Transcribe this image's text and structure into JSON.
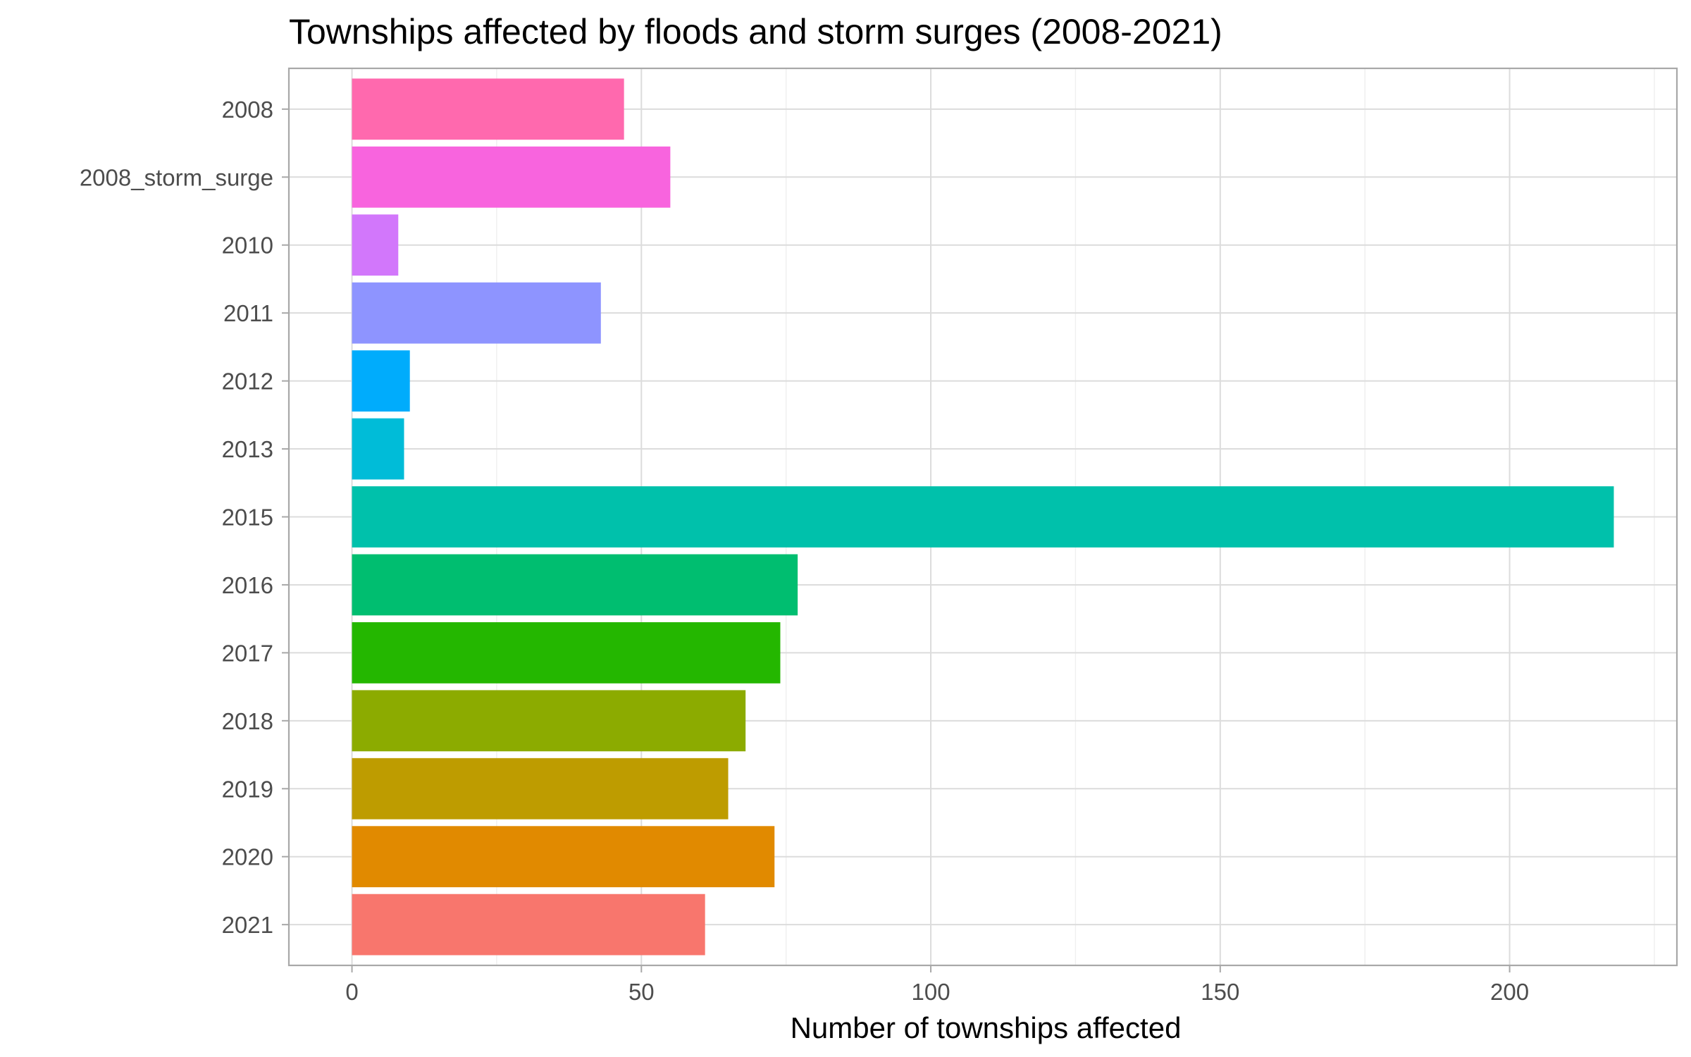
{
  "chart_data": {
    "type": "bar",
    "orientation": "horizontal",
    "title": "Townships affected by floods and storm surges (2008-2021)",
    "xlabel": "Number of townships affected",
    "ylabel": "",
    "xlim": [
      -10.9,
      228.9
    ],
    "x_ticks": [
      0,
      50,
      100,
      150,
      200
    ],
    "x_tick_labels": [
      "0",
      "50",
      "100",
      "150",
      "200"
    ],
    "x_minor_ticks": [
      25,
      75,
      125,
      175,
      225
    ],
    "grid": true,
    "legend": "none",
    "categories": [
      "2008",
      "2008_storm_surge",
      "2010",
      "2011",
      "2012",
      "2013",
      "2015",
      "2016",
      "2017",
      "2018",
      "2019",
      "2020",
      "2021"
    ],
    "values": [
      47,
      55,
      8,
      43,
      10,
      9,
      218,
      77,
      74,
      68,
      65,
      73,
      61
    ],
    "colors": [
      "#FF69AE",
      "#F864DE",
      "#D277FB",
      "#8E94FF",
      "#00ACFC",
      "#00BCD8",
      "#00C1AB",
      "#00BE70",
      "#24B700",
      "#8CAB00",
      "#BE9C00",
      "#E18A00",
      "#F8766D"
    ]
  }
}
